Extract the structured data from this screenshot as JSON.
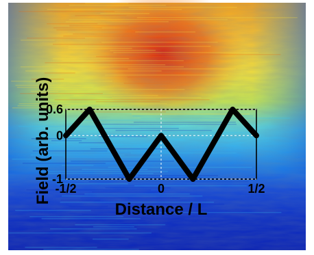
{
  "chart_data": {
    "type": "line",
    "title": "",
    "xlabel": "Distance / L",
    "ylabel": "Field (arb. units)",
    "xlim": [
      -0.5,
      0.5
    ],
    "ylim": [
      -1,
      0.6
    ],
    "x_ticks": [
      {
        "value": -0.5,
        "label": "-1/2"
      },
      {
        "value": 0,
        "label": "0"
      },
      {
        "value": 0.5,
        "label": "1/2"
      }
    ],
    "y_ticks": [
      {
        "value": 0.6,
        "label": "0.6"
      },
      {
        "value": 0,
        "label": "0"
      },
      {
        "value": -1,
        "label": "-1"
      }
    ],
    "grid": true,
    "legend": "none",
    "series": [
      {
        "x": [
          -0.5,
          -0.375,
          -0.167,
          0,
          0.167,
          0.375,
          0.5
        ],
        "y": [
          0,
          0.6,
          -1,
          0,
          -1,
          0.6,
          0
        ],
        "color": "#000000"
      }
    ],
    "background": {
      "type": "heatmap",
      "colormap": "jet"
    }
  }
}
